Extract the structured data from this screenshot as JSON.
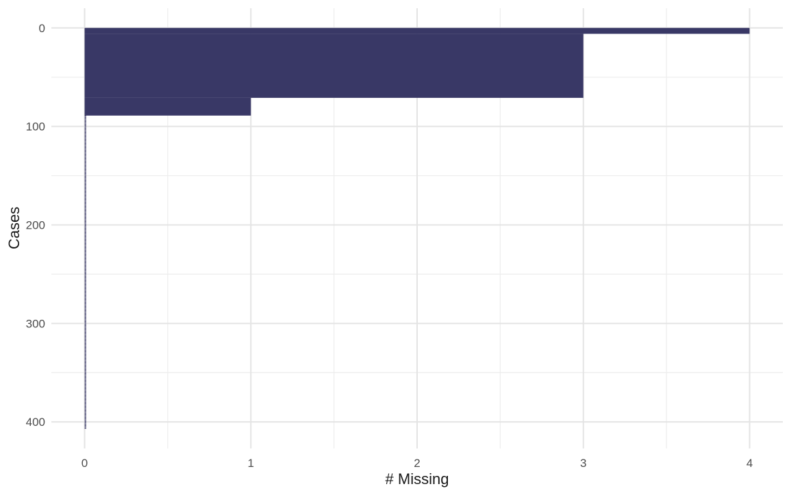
{
  "chart_data": {
    "type": "area",
    "title": "",
    "xlabel": "# Missing",
    "ylabel": "Cases",
    "x_ticks": [
      0,
      1,
      2,
      3,
      4
    ],
    "x_minor_ticks": [
      0.5,
      1.5,
      2.5,
      3.5
    ],
    "y_ticks": [
      0,
      100,
      200,
      300,
      400
    ],
    "y_minor_ticks": [
      50,
      150,
      250,
      350
    ],
    "xlim": [
      -0.2,
      4.2
    ],
    "ylim": [
      -20,
      427
    ],
    "y_axis_direction": "cases increase downward (0 at top)",
    "grid": "major and minor gridlines, white background, no axis ticks (minimal theme)",
    "legend": "none",
    "total_cases": 407,
    "segments": [
      {
        "n_missing": 4,
        "case_start": 0,
        "case_end": 6
      },
      {
        "n_missing": 3,
        "case_start": 6,
        "case_end": 71
      },
      {
        "n_missing": 1,
        "case_start": 71,
        "case_end": 89
      },
      {
        "n_missing": 0,
        "case_start": 89,
        "case_end": 407
      }
    ],
    "colors": {
      "fill": "#393866",
      "grid_major": "#e4e4e4",
      "grid_minor": "#ededed",
      "tick_text": "#4d4d4d",
      "title_text": "#1a1a1a",
      "background": "#ffffff"
    }
  }
}
